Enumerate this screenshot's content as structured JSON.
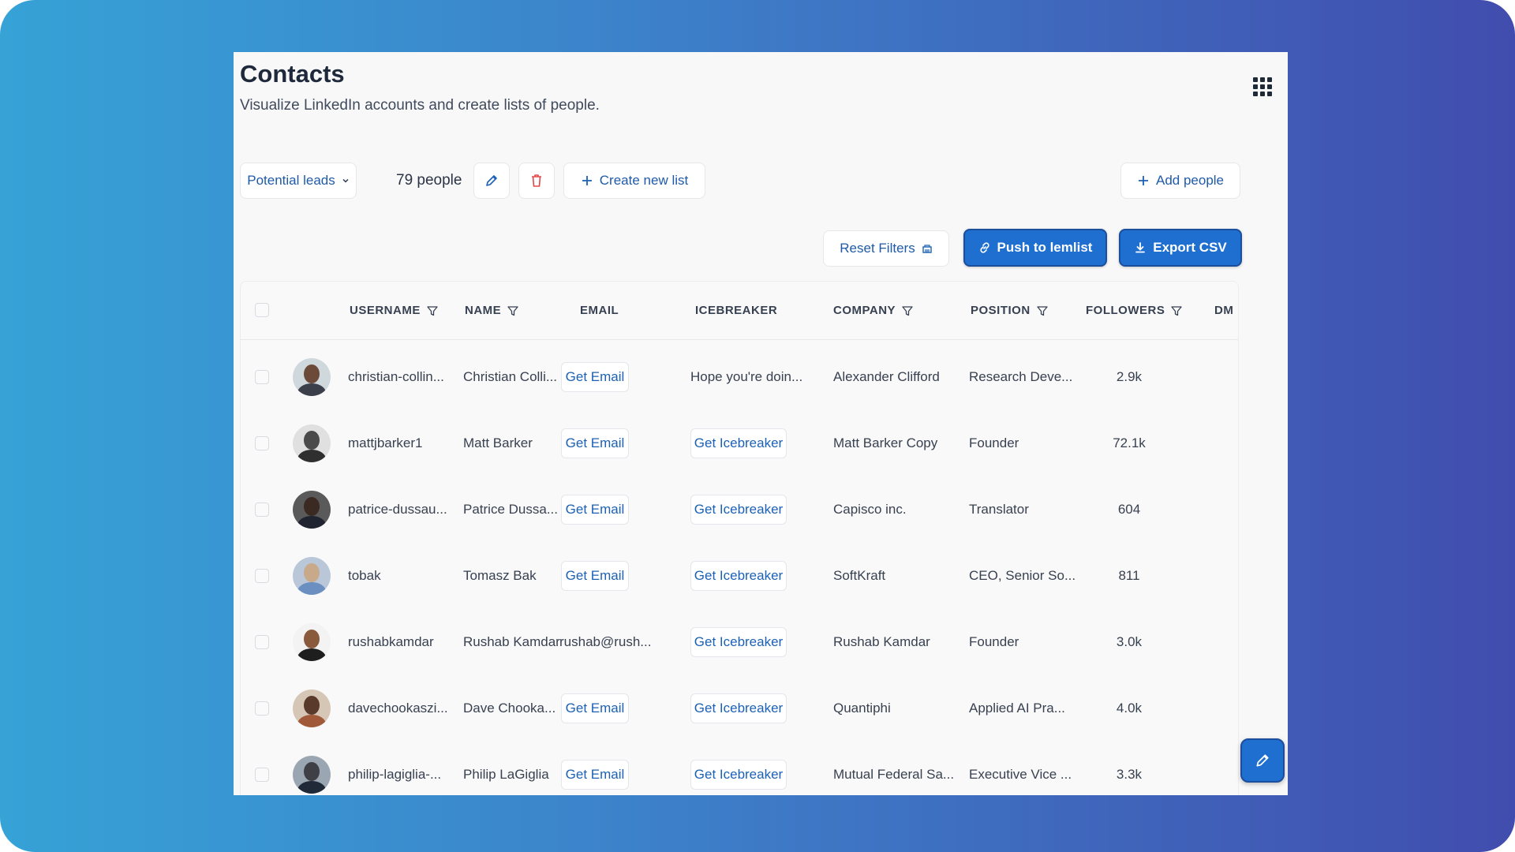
{
  "header": {
    "title": "Contacts",
    "subtitle": "Visualize LinkedIn accounts and create lists of people."
  },
  "toolbar": {
    "list_select": "Potential leads",
    "people_count": "79 people",
    "create_list_label": "Create new list",
    "add_people_label": "Add people",
    "reset_filters_label": "Reset Filters",
    "push_label": "Push to lemlist",
    "export_label": "Export CSV"
  },
  "table": {
    "columns": {
      "username": "USERNAME",
      "name": "NAME",
      "email": "EMAIL",
      "icebreaker": "ICEBREAKER",
      "company": "COMPANY",
      "position": "POSITION",
      "followers": "FOLLOWERS",
      "dm": "DM"
    },
    "get_email_label": "Get Email",
    "get_icebreaker_label": "Get Icebreaker",
    "rows": [
      {
        "username": "christian-collin...",
        "name": "Christian Colli...",
        "email": null,
        "icebreaker": "Hope you're doin...",
        "company": "Alexander Clifford",
        "position": "Research Deve...",
        "followers": "2.9k"
      },
      {
        "username": "mattjbarker1",
        "name": "Matt Barker",
        "email": null,
        "icebreaker": null,
        "company": "Matt Barker Copy",
        "position": "Founder",
        "followers": "72.1k"
      },
      {
        "username": "patrice-dussau...",
        "name": "Patrice Dussa...",
        "email": null,
        "icebreaker": null,
        "company": "Capisco inc.",
        "position": "Translator",
        "followers": "604"
      },
      {
        "username": "tobak",
        "name": "Tomasz Bak",
        "email": null,
        "icebreaker": null,
        "company": "SoftKraft",
        "position": "CEO, Senior So...",
        "followers": "811"
      },
      {
        "username": "rushabkamdar",
        "name": "Rushab Kamdar",
        "email": "rushab@rush...",
        "icebreaker": null,
        "company": "Rushab Kamdar",
        "position": "Founder",
        "followers": "3.0k"
      },
      {
        "username": "davechookaszi...",
        "name": "Dave Chooka...",
        "email": null,
        "icebreaker": null,
        "company": "Quantiphi",
        "position": "Applied AI Pra...",
        "followers": "4.0k"
      },
      {
        "username": "philip-lagiglia-...",
        "name": "Philip LaGiglia",
        "email": null,
        "icebreaker": null,
        "company": "Mutual Federal Sa...",
        "position": "Executive Vice ...",
        "followers": "3.3k"
      }
    ]
  },
  "colors": {
    "accent": "#1e6fd0",
    "link": "#1c61b5",
    "gradient_start": "#36a2d6",
    "gradient_end": "#414dae"
  },
  "icons": {
    "apps": "grid-icon",
    "edit": "pencil-icon",
    "delete": "trash-icon",
    "add": "plus-icon",
    "filter": "filter-icon",
    "link": "link-icon",
    "download": "download-icon",
    "reset": "eraser-icon"
  }
}
